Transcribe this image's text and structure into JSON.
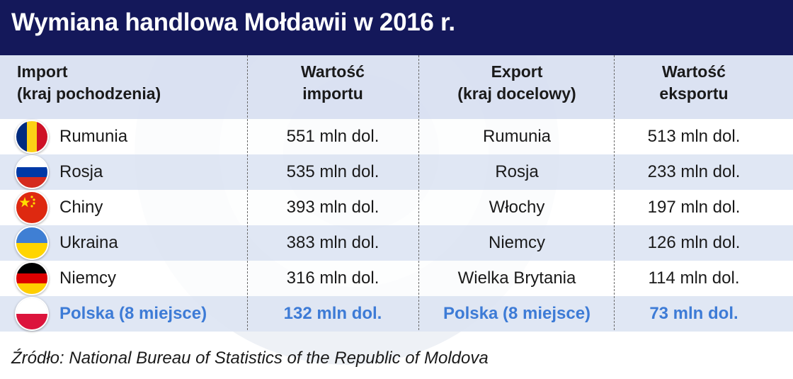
{
  "title": "Wymiana handlowa Mołdawii w 2016 r.",
  "columns": {
    "import_country": [
      "Import",
      "(kraj pochodzenia)"
    ],
    "import_value": [
      "Wartość",
      "importu"
    ],
    "export_country": [
      "Export",
      "(kraj docelowy)"
    ],
    "export_value": [
      "Wartość",
      "eksportu"
    ]
  },
  "rows": [
    {
      "flag": "romania-flag-icon",
      "import_country": "Rumunia",
      "import_value": "551 mln dol.",
      "export_country": "Rumunia",
      "export_value": "513 mln dol."
    },
    {
      "flag": "russia-flag-icon",
      "import_country": "Rosja",
      "import_value": "535 mln dol.",
      "export_country": "Rosja",
      "export_value": "233 mln dol."
    },
    {
      "flag": "china-flag-icon",
      "import_country": "Chiny",
      "import_value": "393 mln dol.",
      "export_country": "Włochy",
      "export_value": "197 mln dol."
    },
    {
      "flag": "ukraine-flag-icon",
      "import_country": "Ukraina",
      "import_value": "383 mln dol.",
      "export_country": "Niemcy",
      "export_value": "126 mln dol."
    },
    {
      "flag": "germany-flag-icon",
      "import_country": "Niemcy",
      "import_value": "316 mln dol.",
      "export_country": "Wielka Brytania",
      "export_value": "114 mln dol."
    },
    {
      "flag": "poland-flag-icon",
      "import_country": "Polska (8 miejsce)",
      "import_value": "132 mln dol.",
      "export_country": "Polska (8 miejsce)",
      "export_value": "73 mln dol."
    }
  ],
  "source": "Źródło: National Bureau of Statistics of the Republic of Moldova",
  "colors": {
    "header_bg": "#14185a",
    "highlight": "#3d7bd6",
    "row_alt": "#dde4f3"
  }
}
